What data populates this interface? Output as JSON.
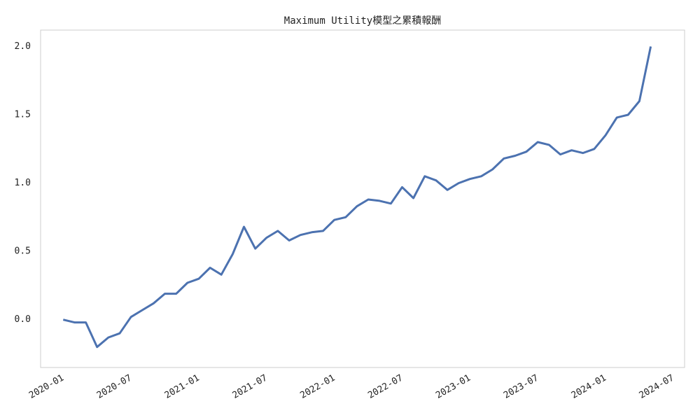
{
  "chart_data": {
    "type": "line",
    "title": "Maximum Utility模型之累積報酬",
    "x": [
      "2020-01",
      "2020-02",
      "2020-03",
      "2020-04",
      "2020-05",
      "2020-06",
      "2020-07",
      "2020-08",
      "2020-09",
      "2020-10",
      "2020-11",
      "2020-12",
      "2021-01",
      "2021-02",
      "2021-03",
      "2021-04",
      "2021-05",
      "2021-06",
      "2021-07",
      "2021-08",
      "2021-09",
      "2021-10",
      "2021-11",
      "2021-12",
      "2022-01",
      "2022-02",
      "2022-03",
      "2022-04",
      "2022-05",
      "2022-06",
      "2022-07",
      "2022-08",
      "2022-09",
      "2022-10",
      "2022-11",
      "2022-12",
      "2023-01",
      "2023-02",
      "2023-03",
      "2023-04",
      "2023-05",
      "2023-06",
      "2023-07",
      "2023-08",
      "2023-09",
      "2023-10",
      "2023-11",
      "2023-12",
      "2024-01",
      "2024-02",
      "2024-03",
      "2024-04",
      "2024-05"
    ],
    "series": [
      {
        "color": "#4c72b0",
        "values": [
          0.0,
          -0.02,
          -0.02,
          -0.2,
          -0.13,
          -0.1,
          0.02,
          0.07,
          0.12,
          0.19,
          0.19,
          0.27,
          0.3,
          0.38,
          0.33,
          0.48,
          0.68,
          0.52,
          0.6,
          0.65,
          0.58,
          0.62,
          0.64,
          0.65,
          0.73,
          0.75,
          0.83,
          0.88,
          0.87,
          0.85,
          0.97,
          0.89,
          1.05,
          1.02,
          0.95,
          1.0,
          1.03,
          1.05,
          1.1,
          1.18,
          1.2,
          1.23,
          1.3,
          1.28,
          1.21,
          1.24,
          1.22,
          1.25,
          1.35,
          1.48,
          1.5,
          1.6,
          2.0
        ]
      }
    ],
    "xlim": [
      "2019-11",
      "2024-08"
    ],
    "xticks": [
      "2020-01",
      "2020-07",
      "2021-01",
      "2021-07",
      "2022-01",
      "2022-07",
      "2023-01",
      "2023-07",
      "2024-01",
      "2024-07"
    ],
    "ylim": [
      -0.35,
      2.12
    ],
    "yticks": [
      {
        "value": 0,
        "label": "0.0"
      },
      0.5,
      {
        "value": 1,
        "label": "1.0"
      },
      1.5,
      {
        "value": 2,
        "label": "2.0"
      }
    ],
    "grid": false
  }
}
